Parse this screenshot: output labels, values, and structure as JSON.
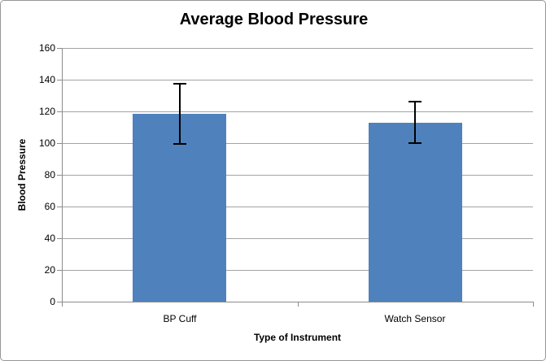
{
  "chart_data": {
    "type": "bar",
    "title": "Average Blood Pressure",
    "xlabel": "Type of Instrument",
    "ylabel": "Blood Pressure",
    "categories": [
      "BP Cuff",
      "Watch Sensor"
    ],
    "values": [
      118.5,
      113
    ],
    "error_bars_plus_minus": [
      19,
      13
    ],
    "ylim": [
      0,
      160
    ],
    "yticks": [
      0,
      20,
      40,
      60,
      80,
      100,
      120,
      140,
      160
    ],
    "grid": true,
    "legend": false
  },
  "colors": {
    "bar_fill": "#4F81BD",
    "gridline": "#A3A3A3",
    "axis_line": "#8C8C8C",
    "error_bar": "#000000",
    "chart_border": "#969696",
    "background": "#FFFFFF",
    "text": "#000000"
  }
}
